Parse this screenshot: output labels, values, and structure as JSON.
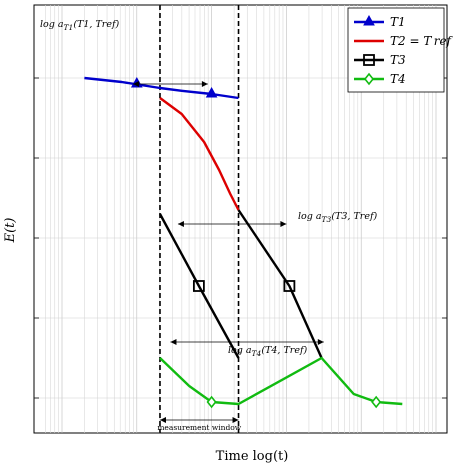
{
  "chart_data": {
    "type": "line",
    "title": "",
    "xlabel": "Time log(t)",
    "ylabel": "E(t)",
    "xlim": [
      0,
      5
    ],
    "ylim": [
      0,
      9
    ],
    "xscale": "log-decades",
    "grid": true,
    "legend_position": "top-right",
    "measurement_window": [
      1.31,
      2.36
    ],
    "series": [
      {
        "name": "T1",
        "color": "#0000cc",
        "marker": "triangle",
        "x": [
          0.3,
          0.8,
          1.31,
          1.6,
          2.0,
          2.36
        ],
        "y": [
          8.0,
          7.9,
          7.75,
          7.68,
          7.6,
          7.5
        ]
      },
      {
        "name": "T2 = Tref",
        "color": "#dd0000",
        "marker": "none",
        "x": [
          1.31,
          1.6,
          1.9,
          2.1,
          2.25,
          2.36
        ],
        "y": [
          7.5,
          7.1,
          6.4,
          5.7,
          5.1,
          4.7
        ]
      },
      {
        "name": "T3",
        "color": "#000000",
        "marker": "square",
        "x": [
          1.31,
          1.83,
          2.36,
          2.36,
          3.04,
          3.47
        ],
        "y": [
          4.6,
          2.8,
          1.0,
          4.7,
          2.8,
          1.0
        ]
      },
      {
        "name": "T4",
        "color": "#11bb11",
        "marker": "diamond",
        "x": [
          1.31,
          1.7,
          2.0,
          2.36,
          3.47,
          3.9,
          4.2,
          4.55
        ],
        "y": [
          1.0,
          0.3,
          -0.1,
          -0.15,
          1.0,
          0.1,
          -0.1,
          -0.15
        ]
      }
    ],
    "annotations": [
      "log a_T1(T1, Tref)",
      "log a_T3(T3, Tref)",
      "log a_T4(T4, Tref)",
      "measurement window"
    ]
  },
  "labels": {
    "ylabel": "E(t)",
    "xlabel": "Time log(t)",
    "ann_t1": "log a",
    "ann_t1_sub": "T1",
    "ann_t1_args": "(T1, Tref)",
    "ann_t3": "log a",
    "ann_t3_sub": "T3",
    "ann_t3_args": "(T3, Tref)",
    "ann_t4": "log a",
    "ann_t4_sub": "T4",
    "ann_t4_args": "(T4, Tref)",
    "window": "measurement window"
  },
  "legend": [
    {
      "label": "T1",
      "color": "#0000cc",
      "marker": "triangle"
    },
    {
      "label": "T2 = Tref",
      "color": "#dd0000",
      "marker": "none"
    },
    {
      "label": "T3",
      "color": "#000000",
      "marker": "square"
    },
    {
      "label": "T4",
      "color": "#11bb11",
      "marker": "diamond"
    }
  ]
}
